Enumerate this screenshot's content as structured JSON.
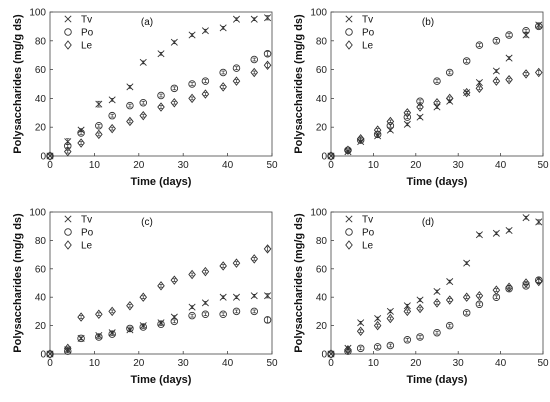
{
  "chart_data": [
    {
      "type": "scatter",
      "panel_label": "(a)",
      "xlabel": "Time (days)",
      "ylabel": "Polysaccharides (mg/g ds)",
      "xlim": [
        0,
        50
      ],
      "ylim": [
        0,
        100
      ],
      "xticks": [
        "0",
        "10",
        "20",
        "30",
        "40",
        "50"
      ],
      "yticks": [
        "0",
        "20",
        "40",
        "60",
        "80",
        "100"
      ],
      "legend_position": "top-left",
      "series": [
        {
          "name": "Tv",
          "marker": "x",
          "x": [
            0,
            4,
            7,
            11,
            14,
            18,
            21,
            25,
            28,
            32,
            35,
            39,
            42,
            46,
            49
          ],
          "y": [
            0,
            10,
            18,
            36,
            39,
            48,
            65,
            71,
            79,
            84,
            87,
            89,
            95,
            95,
            96
          ],
          "err": [
            0,
            2,
            1,
            2,
            1,
            1,
            1,
            1,
            1,
            1,
            1,
            1,
            1,
            1,
            1.5
          ]
        },
        {
          "name": "Po",
          "marker": "circle",
          "x": [
            0,
            4,
            7,
            11,
            14,
            18,
            21,
            25,
            28,
            32,
            35,
            39,
            42,
            46,
            49
          ],
          "y": [
            0,
            7,
            16,
            21,
            28,
            35,
            37,
            42,
            47,
            50,
            52,
            58,
            61,
            67,
            71
          ],
          "err": [
            0,
            1,
            1,
            1,
            1,
            1,
            1,
            1,
            1,
            1,
            1,
            1,
            1,
            1,
            1.5
          ]
        },
        {
          "name": "Le",
          "marker": "diamond",
          "x": [
            0,
            4,
            7,
            11,
            14,
            18,
            21,
            25,
            28,
            32,
            35,
            39,
            42,
            46,
            49
          ],
          "y": [
            0,
            3,
            9,
            15,
            19,
            24,
            28,
            34,
            37,
            40,
            43,
            48,
            52,
            58,
            63
          ],
          "err": [
            0,
            1,
            1,
            1,
            1,
            1,
            1,
            1,
            1,
            1,
            1,
            1,
            1,
            1,
            1.5
          ]
        }
      ]
    },
    {
      "type": "scatter",
      "panel_label": "(b)",
      "xlabel": "Time (days)",
      "ylabel": "Polysaccharides (mg/g ds)",
      "xlim": [
        0,
        50
      ],
      "ylim": [
        0,
        100
      ],
      "xticks": [
        "0",
        "10",
        "20",
        "30",
        "40",
        "50"
      ],
      "yticks": [
        "0",
        "20",
        "40",
        "60",
        "80",
        "100"
      ],
      "legend_position": "top-left",
      "series": [
        {
          "name": "Tv",
          "marker": "x",
          "x": [
            0,
            4,
            7,
            11,
            14,
            18,
            21,
            25,
            28,
            32,
            35,
            39,
            42,
            46,
            49
          ],
          "y": [
            0,
            3,
            10,
            14,
            18,
            22,
            27,
            34,
            38,
            44,
            51,
            59,
            68,
            84,
            91
          ],
          "err": [
            0,
            1,
            1,
            1,
            1,
            1,
            1,
            1,
            1,
            1,
            1,
            1,
            1,
            1.5,
            1.5
          ]
        },
        {
          "name": "Po",
          "marker": "circle",
          "x": [
            0,
            4,
            7,
            11,
            14,
            18,
            21,
            25,
            28,
            32,
            35,
            39,
            42,
            46,
            49
          ],
          "y": [
            0,
            4,
            11,
            15,
            21,
            27,
            38,
            52,
            58,
            66,
            77,
            80,
            84,
            87,
            90
          ],
          "err": [
            0,
            1,
            1,
            1,
            1,
            1,
            1,
            1,
            1,
            1,
            1,
            1,
            1,
            1,
            1.5
          ]
        },
        {
          "name": "Le",
          "marker": "diamond",
          "x": [
            0,
            4,
            7,
            11,
            14,
            18,
            21,
            25,
            28,
            32,
            35,
            39,
            42,
            46,
            49
          ],
          "y": [
            0,
            4,
            12,
            18,
            24,
            30,
            34,
            37,
            40,
            44,
            47,
            52,
            53,
            57,
            58
          ],
          "err": [
            0,
            1,
            1,
            1,
            1,
            1,
            1,
            1,
            1,
            1,
            1,
            1,
            1,
            1,
            1.5
          ]
        }
      ]
    },
    {
      "type": "scatter",
      "panel_label": "(c)",
      "xlabel": "Time (days)",
      "ylabel": "Polysaccharides (mg/g ds)",
      "xlim": [
        0,
        50
      ],
      "ylim": [
        0,
        100
      ],
      "xticks": [
        "0",
        "10",
        "20",
        "30",
        "40",
        "50"
      ],
      "yticks": [
        "0",
        "20",
        "40",
        "60",
        "80",
        "100"
      ],
      "legend_position": "top-left",
      "series": [
        {
          "name": "Tv",
          "marker": "x",
          "x": [
            0,
            4,
            7,
            11,
            14,
            18,
            21,
            25,
            28,
            32,
            35,
            39,
            42,
            46,
            49
          ],
          "y": [
            0,
            3,
            11,
            13,
            15,
            17,
            20,
            22,
            26,
            33,
            36,
            40,
            40,
            41,
            41
          ],
          "err": [
            0,
            1,
            1,
            1,
            1,
            1,
            1,
            1,
            1,
            1,
            1,
            1,
            1,
            1,
            1.5
          ]
        },
        {
          "name": "Po",
          "marker": "circle",
          "x": [
            0,
            4,
            7,
            11,
            14,
            18,
            21,
            25,
            28,
            32,
            35,
            39,
            42,
            46,
            49
          ],
          "y": [
            0,
            2,
            11,
            12,
            14,
            18,
            19,
            21,
            23,
            27,
            28,
            28,
            30,
            30,
            24
          ],
          "err": [
            0,
            1,
            1,
            1,
            1,
            1,
            1,
            1,
            1,
            1,
            1,
            1,
            1,
            1,
            2
          ]
        },
        {
          "name": "Le",
          "marker": "diamond",
          "x": [
            0,
            4,
            7,
            11,
            14,
            18,
            21,
            25,
            28,
            32,
            35,
            39,
            42,
            46,
            49
          ],
          "y": [
            0,
            4,
            26,
            28,
            30,
            34,
            40,
            48,
            52,
            56,
            58,
            62,
            64,
            67,
            74
          ],
          "err": [
            0,
            1,
            1,
            1,
            1,
            1,
            1,
            1,
            1,
            1,
            1,
            1,
            1,
            1,
            1.5
          ]
        }
      ]
    },
    {
      "type": "scatter",
      "panel_label": "(d)",
      "xlabel": "Time (days)",
      "ylabel": "Polysaccharides (mg/g ds)",
      "xlim": [
        0,
        50
      ],
      "ylim": [
        0,
        100
      ],
      "xticks": [
        "0",
        "10",
        "20",
        "30",
        "40",
        "50"
      ],
      "yticks": [
        "0",
        "20",
        "40",
        "60",
        "80",
        "100"
      ],
      "legend_position": "top-left",
      "series": [
        {
          "name": "Tv",
          "marker": "x",
          "x": [
            0,
            4,
            7,
            11,
            14,
            18,
            21,
            25,
            28,
            32,
            35,
            39,
            42,
            46,
            49
          ],
          "y": [
            0,
            4,
            22,
            25,
            30,
            34,
            38,
            44,
            51,
            64,
            84,
            85,
            87,
            96,
            93
          ],
          "err": [
            0,
            1,
            1,
            1,
            1,
            1,
            1,
            1,
            1,
            1,
            1,
            1,
            1,
            1,
            1.5
          ]
        },
        {
          "name": "Po",
          "marker": "circle",
          "x": [
            0,
            4,
            7,
            11,
            14,
            18,
            21,
            25,
            28,
            32,
            35,
            39,
            42,
            46,
            49
          ],
          "y": [
            0,
            2,
            4,
            5,
            6,
            10,
            12,
            15,
            20,
            29,
            35,
            40,
            46,
            48,
            52
          ],
          "err": [
            0,
            1,
            1,
            1,
            1,
            1,
            1,
            1,
            1,
            1,
            1,
            1,
            1,
            1,
            1.5
          ]
        },
        {
          "name": "Le",
          "marker": "diamond",
          "x": [
            0,
            4,
            7,
            11,
            14,
            18,
            21,
            25,
            28,
            32,
            35,
            39,
            42,
            46,
            49
          ],
          "y": [
            0,
            3,
            16,
            20,
            25,
            30,
            32,
            36,
            38,
            40,
            41,
            45,
            47,
            50,
            51
          ],
          "err": [
            0,
            1,
            1,
            1,
            1,
            1,
            1,
            1,
            1,
            1,
            1,
            1,
            1,
            1,
            1.5
          ]
        }
      ]
    }
  ]
}
